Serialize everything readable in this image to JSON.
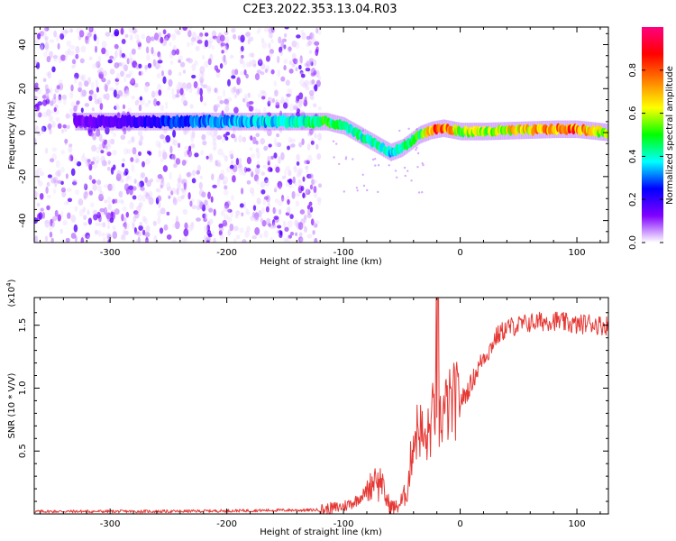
{
  "title": "C2E3.2022.353.13.04.R03",
  "chart_data": [
    {
      "type": "heatmap",
      "xlabel": "Height of straight line (km)",
      "ylabel": "Frequency (Hz)",
      "xlim": [
        -365,
        127
      ],
      "ylim": [
        -50,
        48
      ],
      "xticks": [
        -300,
        -200,
        -100,
        0,
        100
      ],
      "yticks": [
        -40,
        -20,
        0,
        20,
        40
      ],
      "colorbar": {
        "label": "Normalized spectral amplitude",
        "range": [
          0,
          1
        ],
        "ticks": [
          0.0,
          0.2,
          0.4,
          0.6,
          0.8
        ],
        "colormap": [
          "#ffffff",
          "#8000ff",
          "#0000ff",
          "#00ffff",
          "#00ff00",
          "#ffff00",
          "#ff8000",
          "#ff0000",
          "#ff0080"
        ]
      },
      "ridge": {
        "x": [
          -320,
          -280,
          -240,
          -200,
          -160,
          -130,
          -115,
          -100,
          -90,
          -80,
          -70,
          -60,
          -55,
          -50,
          -45,
          -40,
          -35,
          -30,
          -25,
          -20,
          -15,
          -10,
          -5,
          0,
          20,
          50,
          80,
          100,
          127
        ],
        "y": [
          5,
          5,
          5,
          5,
          5,
          5,
          5,
          3,
          0,
          -3,
          -6,
          -9,
          -8,
          -7,
          -5,
          -3,
          -1,
          0,
          1,
          1.5,
          2,
          1.5,
          1,
          0.5,
          0.5,
          1,
          1.5,
          1.5,
          0
        ],
        "amplitude": [
          0.15,
          0.2,
          0.3,
          0.35,
          0.4,
          0.45,
          0.5,
          0.45,
          0.45,
          0.45,
          0.45,
          0.4,
          0.4,
          0.45,
          0.45,
          0.5,
          0.55,
          0.6,
          0.7,
          0.85,
          0.85,
          0.8,
          0.7,
          0.6,
          0.6,
          0.7,
          0.8,
          0.85,
          0.6
        ]
      }
    },
    {
      "type": "line",
      "xlabel": "Height of straight line (km)",
      "ylabel": "SNR (10 * V/V)",
      "multiplier": "(x10",
      "multiplier_exp": "4",
      "multiplier_close": ")",
      "xlim": [
        -365,
        127
      ],
      "ylim": [
        0,
        1.72
      ],
      "xticks": [
        -300,
        -200,
        -100,
        0,
        100
      ],
      "yticks": [
        0.5,
        1.0,
        1.5
      ],
      "color": "#e53935",
      "series": [
        {
          "x": [
            -365,
            -300,
            -250,
            -200,
            -150,
            -130,
            -115,
            -100,
            -90,
            -80,
            -75,
            -72,
            -70,
            -68,
            -65,
            -60,
            -55,
            -50,
            -45,
            -42,
            -40,
            -35,
            -30,
            -25,
            -22,
            -20,
            -18,
            -15,
            -10,
            -5,
            0,
            5,
            10,
            15,
            20,
            25,
            30,
            40,
            50,
            60,
            70,
            80,
            90,
            100,
            110,
            120,
            127
          ],
          "y": [
            0.02,
            0.02,
            0.02,
            0.025,
            0.03,
            0.03,
            0.035,
            0.06,
            0.1,
            0.18,
            0.25,
            0.35,
            0.2,
            0.3,
            0.15,
            0.06,
            0.05,
            0.1,
            0.2,
            0.45,
            0.6,
            0.7,
            0.55,
            0.7,
            0.85,
            0.9,
            0.75,
            0.8,
            0.85,
            0.9,
            0.9,
            0.95,
            1.05,
            1.15,
            1.25,
            1.3,
            1.4,
            1.48,
            1.5,
            1.52,
            1.53,
            1.54,
            1.52,
            1.5,
            1.52,
            1.5,
            1.5
          ]
        }
      ]
    }
  ]
}
